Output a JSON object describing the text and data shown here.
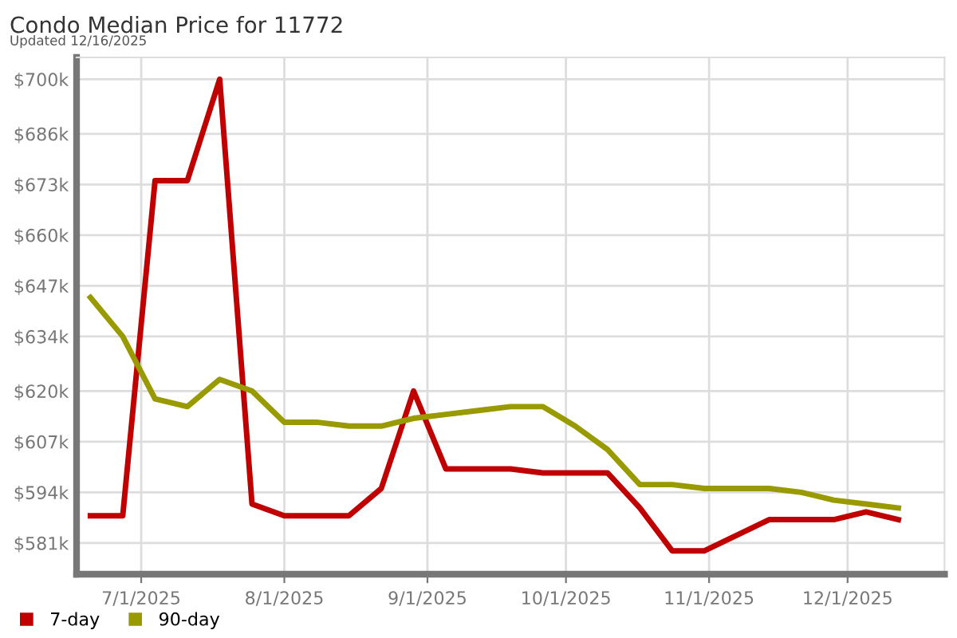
{
  "chart_data": {
    "type": "line",
    "title": "Condo Median Price for 11772",
    "subtitle": "Updated 12/16/2025",
    "x": [
      "2025-06-20",
      "2025-06-27",
      "2025-07-04",
      "2025-07-11",
      "2025-07-18",
      "2025-07-25",
      "2025-08-01",
      "2025-08-08",
      "2025-08-15",
      "2025-08-22",
      "2025-08-29",
      "2025-09-05",
      "2025-09-12",
      "2025-09-19",
      "2025-09-26",
      "2025-10-03",
      "2025-10-10",
      "2025-10-17",
      "2025-10-24",
      "2025-10-31",
      "2025-11-07",
      "2025-11-14",
      "2025-11-21",
      "2025-11-28",
      "2025-12-05",
      "2025-12-12"
    ],
    "series": [
      {
        "name": "7-day",
        "color": "#c00000",
        "values": [
          588,
          588,
          674,
          674,
          700,
          591,
          588,
          588,
          588,
          595,
          620,
          600,
          600,
          600,
          599,
          599,
          599,
          590,
          579,
          579,
          583,
          587,
          587,
          587,
          589,
          587
        ]
      },
      {
        "name": "90-day",
        "color": "#999900",
        "values": [
          644,
          634,
          618,
          616,
          623,
          620,
          612,
          612,
          611,
          611,
          613,
          614,
          615,
          616,
          616,
          611,
          605,
          596,
          596,
          595,
          595,
          595,
          594,
          592,
          591,
          590
        ]
      }
    ],
    "xlim": [
      "2025-06-17",
      "2025-12-22"
    ],
    "xticks": [
      {
        "value": "2025-07-01",
        "label": "7/1/2025"
      },
      {
        "value": "2025-08-01",
        "label": "8/1/2025"
      },
      {
        "value": "2025-09-01",
        "label": "9/1/2025"
      },
      {
        "value": "2025-10-01",
        "label": "10/1/2025"
      },
      {
        "value": "2025-11-01",
        "label": "11/1/2025"
      },
      {
        "value": "2025-12-01",
        "label": "12/1/2025"
      }
    ],
    "ylim": [
      573,
      705.6
    ],
    "yticks": [
      {
        "value": 581,
        "label": "$581k"
      },
      {
        "value": 594,
        "label": "$594k"
      },
      {
        "value": 607,
        "label": "$607k"
      },
      {
        "value": 620,
        "label": "$620k"
      },
      {
        "value": 634,
        "label": "$634k"
      },
      {
        "value": 647,
        "label": "$647k"
      },
      {
        "value": 660,
        "label": "$660k"
      },
      {
        "value": 673,
        "label": "$673k"
      },
      {
        "value": 686,
        "label": "$686k"
      },
      {
        "value": 700,
        "label": "$700k"
      }
    ],
    "grid": true,
    "legend": "bottom left",
    "marker": "none",
    "line_style": "solid"
  }
}
